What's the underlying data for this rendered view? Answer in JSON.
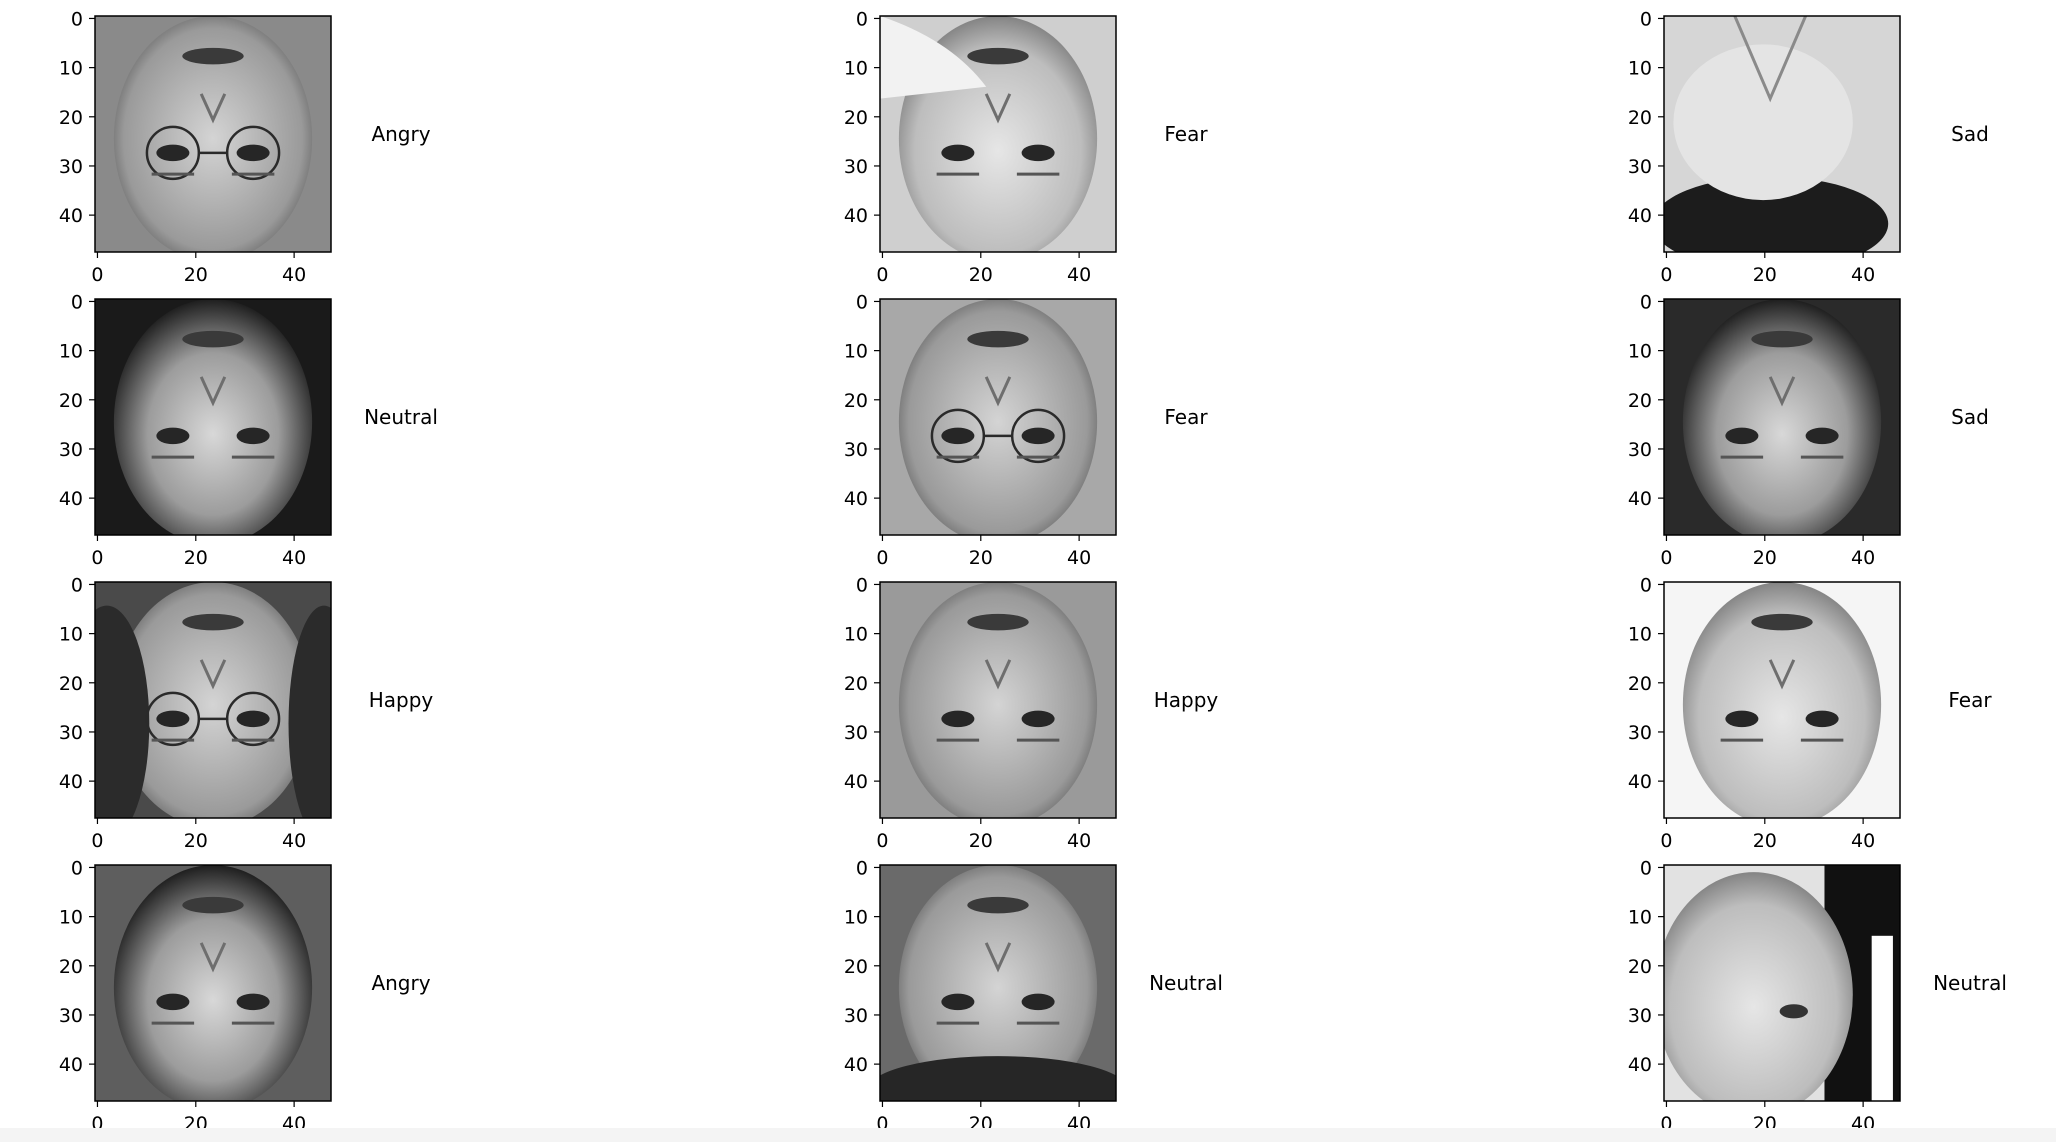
{
  "grid": {
    "rows": 4,
    "cols": 3
  },
  "axes": {
    "x_ticks": [
      "0",
      "20",
      "40"
    ],
    "y_ticks": [
      "0",
      "10",
      "20",
      "30",
      "40"
    ],
    "x_tick_values": [
      0,
      20,
      40
    ],
    "y_tick_values": [
      0,
      10,
      20,
      30,
      40
    ],
    "image_size": 48
  },
  "images": [
    {
      "label": "Angry",
      "tone": "dark-frame-light-face",
      "glasses": true
    },
    {
      "label": "Fear",
      "tone": "light-face-hand",
      "glasses": false
    },
    {
      "label": "Sad",
      "tone": "light-hand-dark-hair",
      "glasses": false
    },
    {
      "label": "Neutral",
      "tone": "dark-background",
      "glasses": false
    },
    {
      "label": "Fear",
      "tone": "mid-grey-glasses",
      "glasses": true
    },
    {
      "label": "Sad",
      "tone": "dark-sides",
      "glasses": false
    },
    {
      "label": "Happy",
      "tone": "dark-hair-light-face",
      "glasses": true
    },
    {
      "label": "Happy",
      "tone": "mid-grey",
      "glasses": false
    },
    {
      "label": "Fear",
      "tone": "light-background",
      "glasses": false
    },
    {
      "label": "Angry",
      "tone": "mid-grey-dark",
      "glasses": false
    },
    {
      "label": "Neutral",
      "tone": "scarf-dark-bottom",
      "glasses": false
    },
    {
      "label": "Neutral",
      "tone": "profile-dark-right",
      "glasses": false
    }
  ],
  "colors": {
    "axis": "#000000",
    "text": "#000000"
  }
}
